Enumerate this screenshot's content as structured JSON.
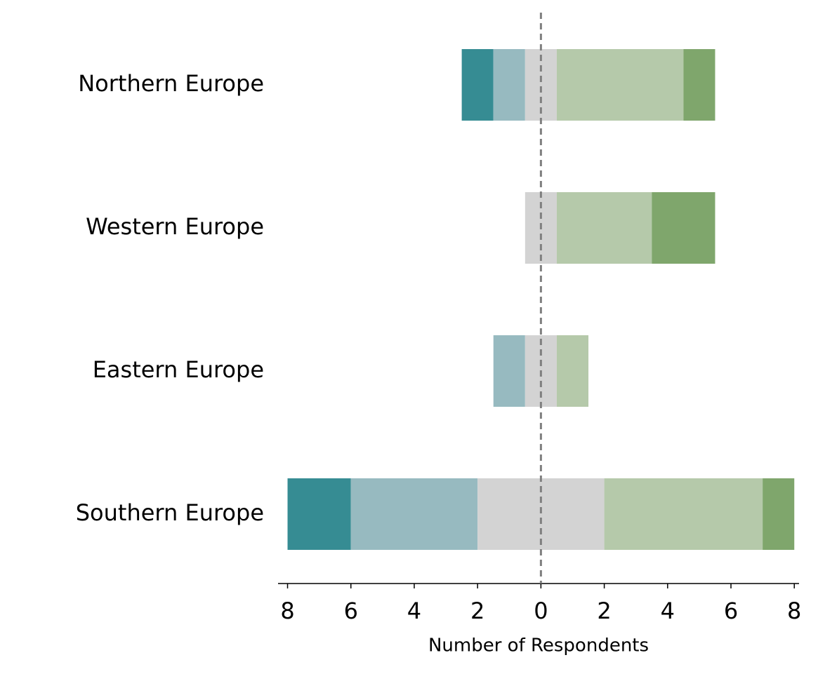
{
  "chart_data": {
    "type": "diverging-bar",
    "categories": [
      "Northern Europe",
      "Western Europe",
      "Eastern Europe",
      "Southern Europe"
    ],
    "series": [
      {
        "color": "#368c93",
        "values": [
          1,
          0,
          0,
          2
        ]
      },
      {
        "color": "#97bac0",
        "values": [
          1,
          0,
          1,
          4
        ]
      },
      {
        "color": "#d3d3d3",
        "values": [
          1,
          1,
          1,
          4
        ]
      },
      {
        "color": "#b5c9aa",
        "values": [
          4,
          3,
          1,
          5
        ]
      },
      {
        "color": "#7fa66c",
        "values": [
          1,
          2,
          0,
          1
        ]
      }
    ],
    "xlabel": "Number of Respondents",
    "xlim": [
      -8.3,
      8.15
    ],
    "xticks": [
      {
        "value": -8,
        "label": "8"
      },
      {
        "value": -6,
        "label": "6"
      },
      {
        "value": -4,
        "label": "4"
      },
      {
        "value": -2,
        "label": "2"
      },
      {
        "value": 0,
        "label": "0"
      },
      {
        "value": 2,
        "label": "2"
      },
      {
        "value": 4,
        "label": "4"
      },
      {
        "value": 6,
        "label": "6"
      },
      {
        "value": 8,
        "label": "8"
      }
    ]
  }
}
